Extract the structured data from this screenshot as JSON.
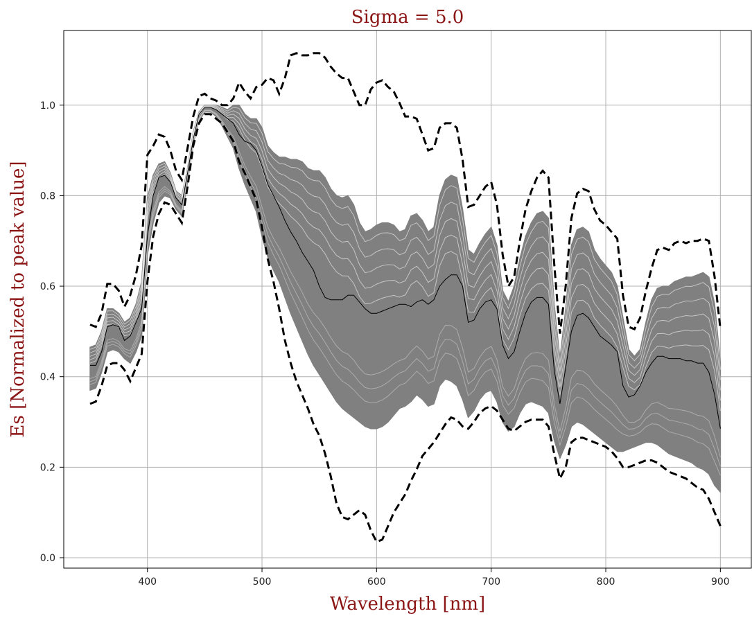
{
  "chart_data": {
    "type": "line",
    "title": "Sigma = 5.0",
    "xlabel": "Wavelength [nm]",
    "ylabel": "Es [Normalized to peak value]",
    "xlim": [
      327,
      927
    ],
    "ylim": [
      -0.023,
      1.165
    ],
    "xticks": [
      400,
      500,
      600,
      700,
      800,
      900
    ],
    "yticks": [
      0.0,
      0.2,
      0.4,
      0.6,
      0.8,
      1.0
    ],
    "xtick_labels": [
      "400",
      "500",
      "600",
      "700",
      "800",
      "900"
    ],
    "ytick_labels": [
      "0.0",
      "0.2",
      "0.4",
      "0.6",
      "0.8",
      "1.0"
    ],
    "grid": true,
    "colors": {
      "ensemble": "#808080",
      "mean": "#000000",
      "bounds": "#000000",
      "title": "#8b1414"
    },
    "x": [
      350,
      355,
      360,
      365,
      370,
      375,
      380,
      385,
      390,
      395,
      400,
      405,
      410,
      415,
      420,
      425,
      430,
      435,
      440,
      445,
      450,
      455,
      460,
      465,
      470,
      475,
      480,
      485,
      490,
      495,
      500,
      505,
      510,
      515,
      520,
      525,
      530,
      535,
      540,
      545,
      550,
      555,
      560,
      565,
      570,
      575,
      580,
      585,
      590,
      595,
      600,
      605,
      610,
      615,
      620,
      625,
      630,
      635,
      640,
      645,
      650,
      655,
      660,
      665,
      670,
      675,
      680,
      685,
      690,
      695,
      700,
      705,
      710,
      715,
      720,
      725,
      730,
      735,
      740,
      745,
      750,
      755,
      760,
      765,
      770,
      775,
      780,
      785,
      790,
      795,
      800,
      805,
      810,
      815,
      820,
      825,
      830,
      835,
      840,
      845,
      850,
      855,
      860,
      865,
      870,
      875,
      880,
      885,
      890,
      895,
      900
    ],
    "series": [
      {
        "role": "upper-bound",
        "style": "dashed",
        "values": [
          0.515,
          0.51,
          0.54,
          0.605,
          0.605,
          0.59,
          0.555,
          0.58,
          0.625,
          0.69,
          0.89,
          0.91,
          0.935,
          0.93,
          0.9,
          0.855,
          0.835,
          0.905,
          0.975,
          1.02,
          1.025,
          1.015,
          1.01,
          1.0,
          1.0,
          1.015,
          1.05,
          1.03,
          1.015,
          1.04,
          1.045,
          1.06,
          1.055,
          1.025,
          1.06,
          1.11,
          1.115,
          1.11,
          1.11,
          1.115,
          1.115,
          1.105,
          1.085,
          1.07,
          1.06,
          1.06,
          1.03,
          1.0,
          1.0,
          1.035,
          1.05,
          1.055,
          1.04,
          1.03,
          1.005,
          0.975,
          0.975,
          0.97,
          0.935,
          0.9,
          0.905,
          0.95,
          0.96,
          0.96,
          0.95,
          0.88,
          0.775,
          0.78,
          0.8,
          0.82,
          0.83,
          0.78,
          0.67,
          0.6,
          0.62,
          0.7,
          0.77,
          0.81,
          0.84,
          0.855,
          0.84,
          0.65,
          0.495,
          0.6,
          0.75,
          0.805,
          0.815,
          0.81,
          0.77,
          0.745,
          0.735,
          0.72,
          0.705,
          0.58,
          0.51,
          0.505,
          0.53,
          0.59,
          0.64,
          0.68,
          0.685,
          0.68,
          0.695,
          0.7,
          0.695,
          0.7,
          0.7,
          0.705,
          0.7,
          0.62,
          0.505
        ]
      },
      {
        "role": "lower-bound",
        "style": "dashed",
        "values": [
          0.34,
          0.345,
          0.38,
          0.425,
          0.43,
          0.43,
          0.415,
          0.39,
          0.42,
          0.45,
          0.61,
          0.71,
          0.76,
          0.785,
          0.78,
          0.76,
          0.74,
          0.82,
          0.91,
          0.96,
          0.98,
          0.98,
          0.97,
          0.96,
          0.94,
          0.92,
          0.875,
          0.85,
          0.82,
          0.79,
          0.73,
          0.66,
          0.61,
          0.55,
          0.48,
          0.43,
          0.39,
          0.36,
          0.33,
          0.295,
          0.27,
          0.23,
          0.18,
          0.12,
          0.09,
          0.085,
          0.095,
          0.105,
          0.095,
          0.06,
          0.035,
          0.04,
          0.07,
          0.1,
          0.12,
          0.14,
          0.17,
          0.195,
          0.225,
          0.24,
          0.255,
          0.275,
          0.295,
          0.31,
          0.305,
          0.29,
          0.285,
          0.3,
          0.32,
          0.33,
          0.335,
          0.325,
          0.305,
          0.285,
          0.28,
          0.29,
          0.3,
          0.305,
          0.305,
          0.305,
          0.29,
          0.23,
          0.175,
          0.2,
          0.255,
          0.265,
          0.265,
          0.26,
          0.255,
          0.25,
          0.245,
          0.235,
          0.22,
          0.2,
          0.2,
          0.205,
          0.21,
          0.215,
          0.215,
          0.21,
          0.2,
          0.19,
          0.185,
          0.18,
          0.175,
          0.165,
          0.155,
          0.15,
          0.13,
          0.1,
          0.07
        ]
      },
      {
        "role": "ensemble-max",
        "style": "band",
        "values": [
          0.465,
          0.47,
          0.5,
          0.55,
          0.55,
          0.54,
          0.52,
          0.53,
          0.56,
          0.61,
          0.795,
          0.845,
          0.87,
          0.875,
          0.85,
          0.81,
          0.8,
          0.86,
          0.94,
          0.985,
          1.0,
          1.0,
          1.0,
          0.995,
          0.99,
          1.0,
          1.0,
          0.98,
          0.97,
          0.97,
          0.95,
          0.91,
          0.895,
          0.885,
          0.885,
          0.88,
          0.88,
          0.875,
          0.86,
          0.855,
          0.855,
          0.84,
          0.815,
          0.8,
          0.795,
          0.8,
          0.78,
          0.74,
          0.72,
          0.725,
          0.735,
          0.74,
          0.74,
          0.735,
          0.72,
          0.725,
          0.755,
          0.76,
          0.745,
          0.72,
          0.73,
          0.8,
          0.835,
          0.845,
          0.84,
          0.77,
          0.68,
          0.67,
          0.695,
          0.715,
          0.73,
          0.69,
          0.59,
          0.565,
          0.6,
          0.66,
          0.71,
          0.74,
          0.76,
          0.765,
          0.75,
          0.56,
          0.44,
          0.55,
          0.69,
          0.725,
          0.73,
          0.72,
          0.68,
          0.66,
          0.645,
          0.63,
          0.6,
          0.53,
          0.46,
          0.445,
          0.46,
          0.52,
          0.57,
          0.595,
          0.6,
          0.6,
          0.61,
          0.615,
          0.62,
          0.62,
          0.625,
          0.63,
          0.62,
          0.56,
          0.43
        ]
      },
      {
        "role": "ensemble-min",
        "style": "band",
        "values": [
          0.37,
          0.375,
          0.41,
          0.455,
          0.46,
          0.455,
          0.44,
          0.43,
          0.455,
          0.49,
          0.67,
          0.74,
          0.785,
          0.8,
          0.795,
          0.77,
          0.755,
          0.83,
          0.915,
          0.965,
          0.985,
          0.985,
          0.975,
          0.955,
          0.93,
          0.905,
          0.86,
          0.825,
          0.795,
          0.765,
          0.71,
          0.665,
          0.635,
          0.61,
          0.575,
          0.54,
          0.51,
          0.48,
          0.45,
          0.425,
          0.405,
          0.385,
          0.365,
          0.345,
          0.33,
          0.32,
          0.31,
          0.3,
          0.29,
          0.285,
          0.285,
          0.29,
          0.3,
          0.315,
          0.33,
          0.335,
          0.345,
          0.36,
          0.35,
          0.335,
          0.34,
          0.38,
          0.395,
          0.39,
          0.38,
          0.35,
          0.31,
          0.325,
          0.35,
          0.365,
          0.37,
          0.345,
          0.3,
          0.28,
          0.29,
          0.32,
          0.34,
          0.345,
          0.34,
          0.335,
          0.32,
          0.26,
          0.22,
          0.25,
          0.29,
          0.3,
          0.295,
          0.285,
          0.275,
          0.265,
          0.255,
          0.245,
          0.235,
          0.235,
          0.24,
          0.245,
          0.25,
          0.255,
          0.255,
          0.25,
          0.24,
          0.23,
          0.225,
          0.22,
          0.215,
          0.21,
          0.2,
          0.195,
          0.185,
          0.16,
          0.145
        ]
      },
      {
        "role": "mean",
        "style": "solid-thin",
        "values": [
          0.425,
          0.425,
          0.455,
          0.51,
          0.515,
          0.51,
          0.48,
          0.49,
          0.52,
          0.55,
          0.71,
          0.8,
          0.84,
          0.845,
          0.83,
          0.795,
          0.78,
          0.85,
          0.925,
          0.98,
          0.995,
          0.995,
          0.99,
          0.98,
          0.97,
          0.96,
          0.935,
          0.92,
          0.915,
          0.9,
          0.865,
          0.825,
          0.8,
          0.775,
          0.745,
          0.72,
          0.7,
          0.675,
          0.655,
          0.635,
          0.6,
          0.575,
          0.57,
          0.57,
          0.57,
          0.58,
          0.58,
          0.565,
          0.55,
          0.54,
          0.54,
          0.545,
          0.55,
          0.555,
          0.56,
          0.56,
          0.555,
          0.565,
          0.57,
          0.56,
          0.57,
          0.6,
          0.615,
          0.625,
          0.625,
          0.6,
          0.52,
          0.525,
          0.55,
          0.565,
          0.57,
          0.55,
          0.47,
          0.44,
          0.455,
          0.5,
          0.54,
          0.565,
          0.575,
          0.575,
          0.56,
          0.415,
          0.34,
          0.42,
          0.5,
          0.535,
          0.54,
          0.53,
          0.51,
          0.49,
          0.48,
          0.47,
          0.455,
          0.38,
          0.355,
          0.36,
          0.38,
          0.41,
          0.43,
          0.445,
          0.445,
          0.44,
          0.44,
          0.44,
          0.435,
          0.435,
          0.43,
          0.43,
          0.41,
          0.36,
          0.285
        ]
      }
    ]
  }
}
